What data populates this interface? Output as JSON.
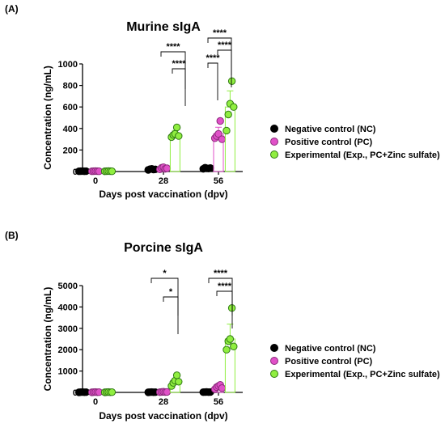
{
  "chart_data": [
    {
      "panel": "(A)",
      "type": "bar",
      "title": "Murine sIgA",
      "xlabel": "Days post vaccination (dpv)",
      "ylabel": "Concentration (ng/mL)",
      "ylim": [
        0,
        1000
      ],
      "yticks": [
        0,
        200,
        400,
        600,
        800,
        1000
      ],
      "categories": [
        "0",
        "28",
        "56"
      ],
      "series": [
        {
          "name": "Negative control (NC)",
          "color": "#000000",
          "values": [
            3,
            20,
            30
          ],
          "points": [
            [
              2,
              3,
              4,
              2,
              3
            ],
            [
              15,
              22,
              25,
              18,
              20
            ],
            [
              25,
              35,
              30,
              28,
              32
            ]
          ]
        },
        {
          "name": "Positive control (PC)",
          "color": "#e050c8",
          "values": [
            3,
            30,
            350
          ],
          "points": [
            [
              2,
              3,
              4,
              3,
              2
            ],
            [
              20,
              35,
              40,
              25,
              30
            ],
            [
              310,
              330,
              350,
              470,
              300
            ]
          ]
        },
        {
          "name": "Experimental (Exp., PC+Zinc sulfate)",
          "color": "#90ee40",
          "values": [
            3,
            350,
            600
          ],
          "points": [
            [
              2,
              3,
              4,
              3,
              2
            ],
            [
              320,
              340,
              350,
              410,
              330
            ],
            [
              380,
              530,
              630,
              840,
              600
            ]
          ]
        }
      ],
      "significance": [
        {
          "from": "28-NC",
          "to": "28-Exp",
          "label": "****"
        },
        {
          "from": "28-PC",
          "to": "28-Exp",
          "label": "****"
        },
        {
          "from": "56-NC",
          "to": "56-Exp",
          "label": "****"
        },
        {
          "from": "56-NC",
          "to": "56-PC",
          "label": "****"
        },
        {
          "from": "56-PC",
          "to": "56-Exp",
          "label": "****"
        }
      ]
    },
    {
      "panel": "(B)",
      "type": "bar",
      "title": "Porcine sIgA",
      "xlabel": "Days post vaccination (dpv)",
      "ylabel": "Concentration (ng/mL)",
      "ylim": [
        0,
        5000
      ],
      "yticks": [
        0,
        1000,
        2000,
        3000,
        4000,
        5000
      ],
      "categories": [
        "0",
        "28",
        "56"
      ],
      "series": [
        {
          "name": "Negative control (NC)",
          "color": "#000000",
          "values": [
            10,
            10,
            15
          ],
          "points": [
            [
              5,
              10,
              15,
              8,
              10
            ],
            [
              5,
              10,
              15,
              8,
              12
            ],
            [
              10,
              15,
              20,
              12,
              15
            ]
          ]
        },
        {
          "name": "Positive control (PC)",
          "color": "#e050c8",
          "values": [
            10,
            20,
            250
          ],
          "points": [
            [
              5,
              10,
              15,
              8,
              10
            ],
            [
              10,
              20,
              30,
              15,
              20
            ],
            [
              150,
              250,
              300,
              350,
              200
            ]
          ]
        },
        {
          "name": "Experimental (Exp., PC+Zinc sulfate)",
          "color": "#90ee40",
          "values": [
            10,
            500,
            2500
          ],
          "points": [
            [
              5,
              10,
              15,
              8,
              10
            ],
            [
              300,
              450,
              550,
              800,
              500
            ],
            [
              2000,
              2400,
              2500,
              3950,
              2150
            ]
          ]
        }
      ],
      "significance": [
        {
          "from": "28-NC",
          "to": "28-Exp",
          "label": "*"
        },
        {
          "from": "28-PC",
          "to": "28-Exp",
          "label": "*"
        },
        {
          "from": "56-NC",
          "to": "56-Exp",
          "label": "****"
        },
        {
          "from": "56-PC",
          "to": "56-Exp",
          "label": "****"
        }
      ]
    }
  ]
}
